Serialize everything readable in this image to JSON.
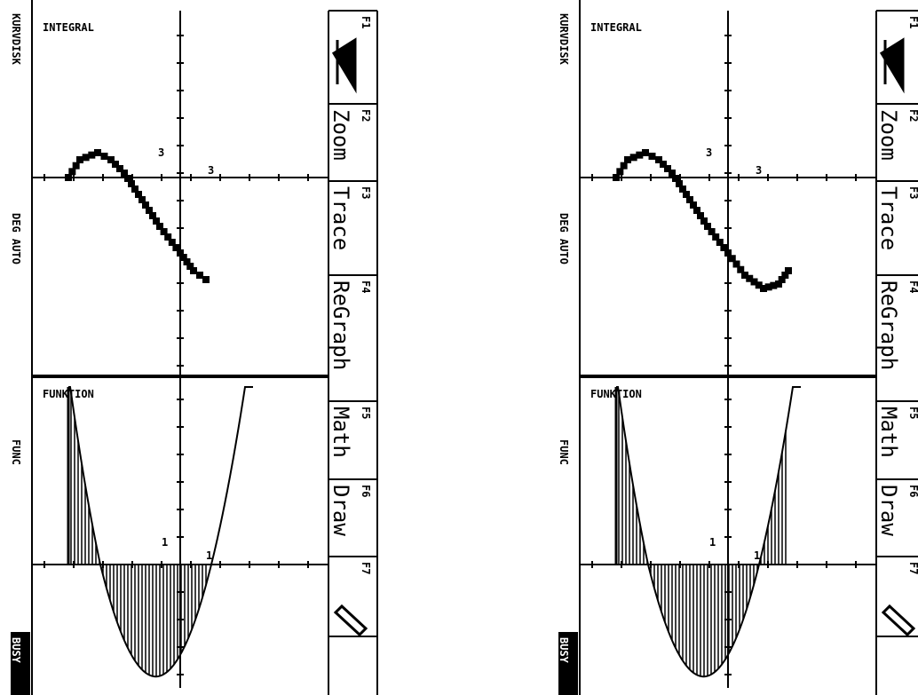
{
  "screens": [
    {
      "status": [
        "KURVDISK",
        "DEG AUTO",
        "FUNC",
        "BUSY"
      ],
      "graphs": [
        {
          "title": "INTEGRAL",
          "ticks": [
            "3",
            "3"
          ]
        },
        {
          "title": "FUNKTION",
          "ticks": [
            "1",
            "1"
          ]
        }
      ],
      "toolbar": [
        {
          "key": "F1"
        },
        {
          "key": "F2",
          "label": "Zoom"
        },
        {
          "key": "F3",
          "label": "Trace"
        },
        {
          "key": "F4",
          "label": "ReGraph"
        },
        {
          "key": "F5",
          "label": "Math"
        },
        {
          "key": "F6",
          "label": "Draw"
        },
        {
          "key": "F7"
        }
      ]
    },
    {
      "status": [
        "KURVDISK",
        "DEG AUTO",
        "FUNC",
        "BUSY"
      ],
      "graphs": [
        {
          "title": "INTEGRAL",
          "ticks": [
            "3",
            "3"
          ]
        },
        {
          "title": "FUNKTION",
          "ticks": [
            "1",
            "1"
          ]
        }
      ],
      "toolbar": [
        {
          "key": "F1"
        },
        {
          "key": "F2",
          "label": "Zoom"
        },
        {
          "key": "F3",
          "label": "Trace"
        },
        {
          "key": "F4",
          "label": "ReGraph"
        },
        {
          "key": "F5",
          "label": "Math"
        },
        {
          "key": "F6",
          "label": "Draw"
        },
        {
          "key": "F7"
        }
      ]
    }
  ]
}
